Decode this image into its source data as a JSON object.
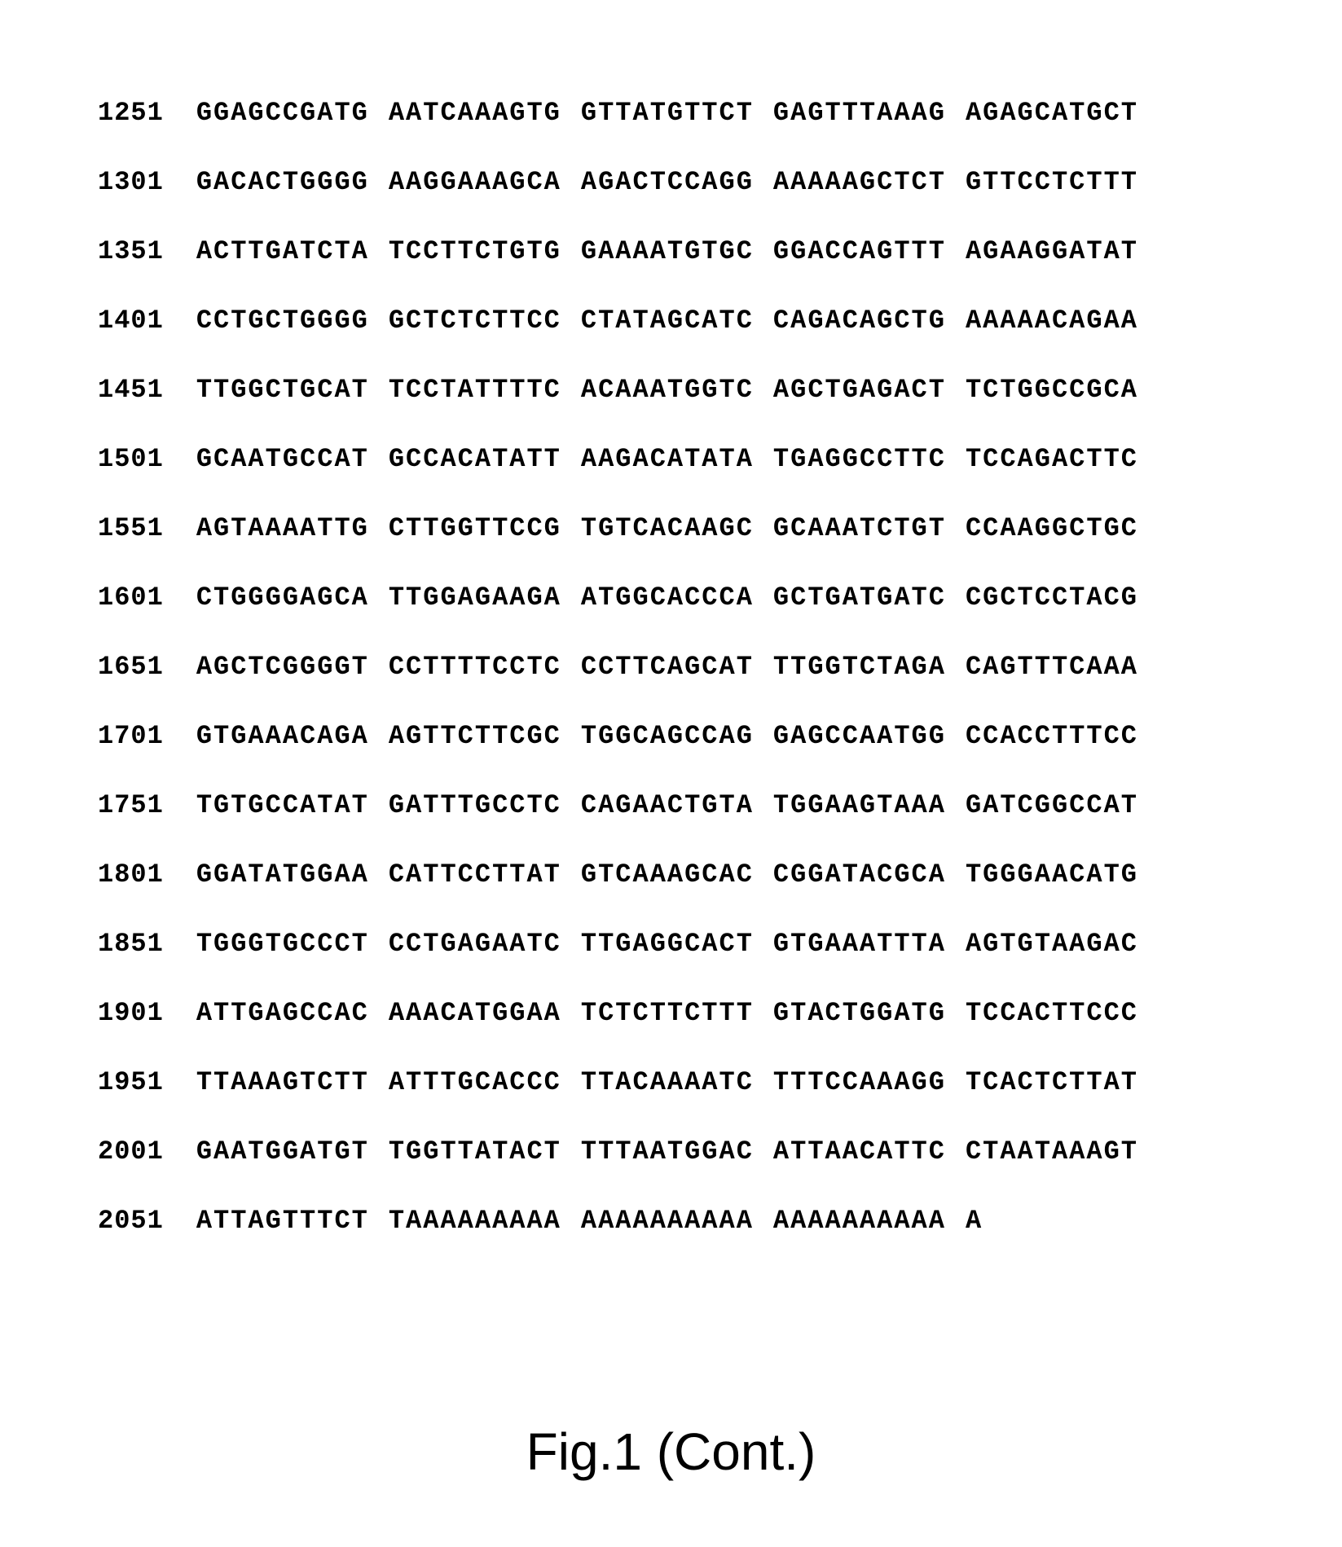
{
  "sequence": {
    "font_family": "Courier New",
    "font_size_pt": 24,
    "font_weight": "bold",
    "text_color": "#000000",
    "background_color": "#ffffff",
    "rows": [
      {
        "position": "1251",
        "blocks": [
          "GGAGCCGATG",
          "AATCAAAGTG",
          "GTTATGTTCT",
          "GAGTTTAAAG",
          "AGAGCATGCT"
        ]
      },
      {
        "position": "1301",
        "blocks": [
          "GACACTGGGG",
          "AAGGAAAGCA",
          "AGACTCCAGG",
          "AAAAAGCTCT",
          "GTTCCTCTTT"
        ]
      },
      {
        "position": "1351",
        "blocks": [
          "ACTTGATCTA",
          "TCCTTCTGTG",
          "GAAAATGTGC",
          "GGACCAGTTT",
          "AGAAGGATAT"
        ]
      },
      {
        "position": "1401",
        "blocks": [
          "CCTGCTGGGG",
          "GCTCTCTTCC",
          "CTATAGCATC",
          "CAGACAGCTG",
          "AAAAACAGAA"
        ]
      },
      {
        "position": "1451",
        "blocks": [
          "TTGGCTGCAT",
          "TCCTATTTTC",
          "ACAAATGGTC",
          "AGCTGAGACT",
          "TCTGGCCGCA"
        ]
      },
      {
        "position": "1501",
        "blocks": [
          "GCAATGCCAT",
          "GCCACATATT",
          "AAGACATATA",
          "TGAGGCCTTC",
          "TCCAGACTTC"
        ]
      },
      {
        "position": "1551",
        "blocks": [
          "AGTAAAATTG",
          "CTTGGTTCCG",
          "TGTCACAAGC",
          "GCAAATCTGT",
          "CCAAGGCTGC"
        ]
      },
      {
        "position": "1601",
        "blocks": [
          "CTGGGGAGCA",
          "TTGGAGAAGA",
          "ATGGCACCCA",
          "GCTGATGATC",
          "CGCTCCTACG"
        ]
      },
      {
        "position": "1651",
        "blocks": [
          "AGCTCGGGGT",
          "CCTTTTCCTC",
          "CCTTCAGCAT",
          "TTGGTCTAGA",
          "CAGTTTCAAA"
        ]
      },
      {
        "position": "1701",
        "blocks": [
          "GTGAAACAGA",
          "AGTTCTTCGC",
          "TGGCAGCCAG",
          "GAGCCAATGG",
          "CCACCTTTCC"
        ]
      },
      {
        "position": "1751",
        "blocks": [
          "TGTGCCATAT",
          "GATTTGCCTC",
          "CAGAACTGTA",
          "TGGAAGTAAA",
          "GATCGGCCAT"
        ]
      },
      {
        "position": "1801",
        "blocks": [
          "GGATATGGAA",
          "CATTCCTTAT",
          "GTCAAAGCAC",
          "CGGATACGCA",
          "TGGGAACATG"
        ]
      },
      {
        "position": "1851",
        "blocks": [
          "TGGGTGCCCT",
          "CCTGAGAATC",
          "TTGAGGCACT",
          "GTGAAATTTA",
          "AGTGTAAGAC"
        ]
      },
      {
        "position": "1901",
        "blocks": [
          "ATTGAGCCAC",
          "AAACATGGAA",
          "TCTCTTCTTT",
          "GTACTGGATG",
          "TCCACTTCCC"
        ]
      },
      {
        "position": "1951",
        "blocks": [
          "TTAAAGTCTT",
          "ATTTGCACCC",
          "TTACAAAATC",
          "TTTCCAAAGG",
          "TCACTCTTAT"
        ]
      },
      {
        "position": "2001",
        "blocks": [
          "GAATGGATGT",
          "TGGTTATACT",
          "TTTAATGGAC",
          "ATTAACATTC",
          "CTAATAAAGT"
        ]
      },
      {
        "position": "2051",
        "blocks": [
          "ATTAGTTTCT",
          "TAAAAAAAAA",
          "AAAAAAAAAA",
          "AAAAAAAAAA",
          "A"
        ]
      }
    ]
  },
  "caption": {
    "text": "Fig.1 (Cont.)",
    "font_family": "Arial",
    "font_size_pt": 48,
    "font_weight": "normal",
    "text_color": "#000000"
  }
}
